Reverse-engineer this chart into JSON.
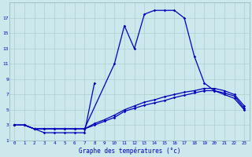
{
  "title": "Graphe des températures (°c)",
  "bg_color": "#cce8ec",
  "line_color": "#0000bb",
  "hours": [
    0,
    1,
    2,
    3,
    4,
    5,
    6,
    7,
    8,
    9,
    10,
    11,
    12,
    13,
    14,
    15,
    16,
    17,
    18,
    19,
    20,
    21,
    22,
    23
  ],
  "curve_main": [
    3,
    3,
    2.5,
    2.5,
    2.5,
    2.5,
    2.5,
    2.5,
    null,
    null,
    11,
    16,
    13,
    17.5,
    18,
    18,
    18,
    17,
    12,
    8.5,
    7.5,
    7,
    6.5,
    5
  ],
  "curve_dip": [
    3,
    3,
    2.5,
    2,
    2,
    2,
    2,
    2,
    8.5,
    null,
    null,
    null,
    null,
    null,
    null,
    null,
    null,
    null,
    null,
    null,
    null,
    null,
    null,
    null
  ],
  "curve_avg1": [
    3,
    3,
    2.5,
    2.5,
    2.5,
    2.5,
    2.5,
    2.5,
    3,
    3.5,
    4,
    4.8,
    5.2,
    5.6,
    5.9,
    6.2,
    6.6,
    6.9,
    7.2,
    7.5,
    7.5,
    7.2,
    6.8,
    5.2
  ],
  "curve_avg2": [
    3,
    3,
    2.5,
    2.5,
    2.5,
    2.5,
    2.5,
    2.5,
    3.2,
    3.7,
    4.3,
    5.0,
    5.5,
    6.0,
    6.3,
    6.7,
    7.0,
    7.3,
    7.5,
    7.8,
    7.8,
    7.5,
    7.0,
    5.5
  ],
  "ylim": [
    1,
    19
  ],
  "yticks": [
    1,
    3,
    5,
    7,
    9,
    11,
    13,
    15,
    17
  ],
  "xlim": [
    -0.5,
    23.5
  ],
  "xticks": [
    0,
    1,
    2,
    3,
    4,
    5,
    6,
    7,
    8,
    9,
    10,
    11,
    12,
    13,
    14,
    15,
    16,
    17,
    18,
    19,
    20,
    21,
    22,
    23
  ]
}
